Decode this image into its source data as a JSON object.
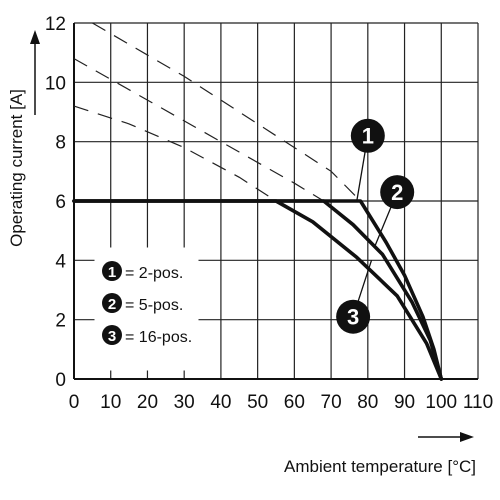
{
  "chart_data": {
    "type": "line",
    "title": "",
    "xlabel": "Ambient temperature [°C]",
    "ylabel": "Operating current [A]",
    "xlim": [
      0,
      110
    ],
    "ylim": [
      0,
      12
    ],
    "x_ticks": [
      0,
      10,
      20,
      30,
      40,
      50,
      60,
      70,
      80,
      90,
      100,
      110
    ],
    "y_ticks": [
      0,
      2,
      4,
      6,
      8,
      10,
      12
    ],
    "grid": true,
    "legend_position": "bottom-left",
    "legend": [
      {
        "marker": "1",
        "text": "= 2-pos."
      },
      {
        "marker": "2",
        "text": "= 5-pos."
      },
      {
        "marker": "3",
        "text": "= 16-pos."
      }
    ],
    "series": [
      {
        "marker": "1",
        "solid": [
          [
            0,
            6
          ],
          [
            78,
            6
          ],
          [
            85,
            4.6
          ],
          [
            90,
            3.5
          ],
          [
            95,
            2.1
          ],
          [
            98,
            1.0
          ],
          [
            100,
            0
          ]
        ],
        "dashed": [
          [
            5,
            12
          ],
          [
            30,
            10.2
          ],
          [
            55,
            8.2
          ],
          [
            70,
            7.0
          ],
          [
            78,
            6
          ]
        ]
      },
      {
        "marker": "2",
        "solid": [
          [
            0,
            6
          ],
          [
            68,
            6
          ],
          [
            76,
            5.2
          ],
          [
            84,
            4.2
          ],
          [
            92,
            2.6
          ],
          [
            97,
            1.3
          ],
          [
            100,
            0
          ]
        ],
        "dashed": [
          [
            0,
            10.8
          ],
          [
            20,
            9.4
          ],
          [
            40,
            8.0
          ],
          [
            60,
            6.6
          ],
          [
            68,
            6
          ]
        ]
      },
      {
        "marker": "3",
        "solid": [
          [
            0,
            6
          ],
          [
            55,
            6
          ],
          [
            65,
            5.3
          ],
          [
            77,
            4.1
          ],
          [
            88,
            2.8
          ],
          [
            96,
            1.2
          ],
          [
            100,
            0
          ]
        ],
        "dashed": [
          [
            0,
            9.2
          ],
          [
            15,
            8.6
          ],
          [
            30,
            7.8
          ],
          [
            45,
            6.8
          ],
          [
            55,
            6
          ]
        ]
      }
    ],
    "markers": [
      {
        "label": "1",
        "x": 80,
        "y": 8.2,
        "pointer_to": [
          77,
          6
        ]
      },
      {
        "label": "2",
        "x": 88,
        "y": 6.3,
        "pointer_to": [
          82,
          4.5
        ]
      },
      {
        "label": "3",
        "x": 76,
        "y": 2.1,
        "pointer_to": [
          81,
          4.0
        ]
      }
    ]
  }
}
